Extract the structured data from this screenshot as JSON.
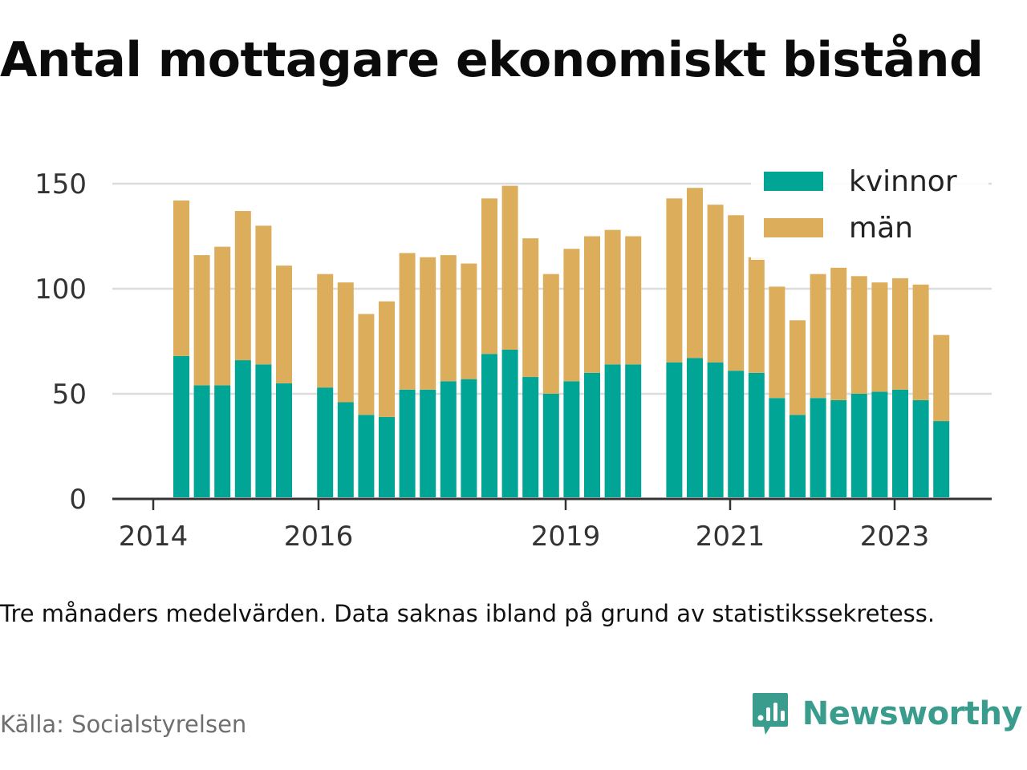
{
  "title": "Antal mottagare ekonomiskt bistånd",
  "caption": "Tre månaders medelvärden. Data saknas ibland på grund av statistikssekretess.",
  "source": "Källa: Socialstyrelsen",
  "brand": {
    "name": "Newsworthy",
    "icon": "newsworthy-logo-icon",
    "color": "#3a9c8c"
  },
  "chart_data": {
    "type": "bar",
    "stacked": true,
    "x_ticks": [
      "2014",
      "2016",
      "2019",
      "2021",
      "2023"
    ],
    "y_ticks": [
      0,
      50,
      100,
      150
    ],
    "ylim": [
      0,
      150
    ],
    "grid": true,
    "legend_position": "top-right",
    "series": [
      {
        "name": "kvinnor",
        "color": "#00a596",
        "values": [
          68,
          54,
          54,
          66,
          64,
          55,
          null,
          53,
          46,
          40,
          39,
          52,
          52,
          56,
          57,
          69,
          71,
          58,
          50,
          56,
          60,
          64,
          64,
          null,
          65,
          67,
          65,
          61,
          60,
          48,
          40,
          48,
          47,
          50,
          51,
          52,
          47,
          37
        ]
      },
      {
        "name": "män",
        "color": "#dcae5c",
        "values": [
          74,
          62,
          66,
          71,
          66,
          56,
          null,
          54,
          57,
          48,
          55,
          65,
          63,
          60,
          55,
          74,
          78,
          66,
          57,
          63,
          65,
          64,
          61,
          null,
          78,
          81,
          75,
          74,
          55,
          53,
          45,
          59,
          63,
          56,
          52,
          53,
          55,
          41
        ]
      }
    ]
  }
}
